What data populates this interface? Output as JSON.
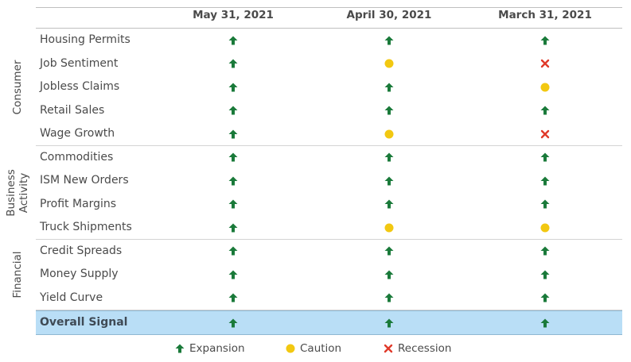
{
  "columns": [
    "May 31, 2021",
    "April 30, 2021",
    "March 31, 2021"
  ],
  "colors": {
    "expansion": "#1a7a3a",
    "caution": "#f2c811",
    "recession": "#e03a2a",
    "overall_bg": "#b9def6"
  },
  "groups": [
    {
      "name": "Consumer",
      "rows": [
        {
          "label": "Housing Permits",
          "signals": [
            "expansion",
            "expansion",
            "expansion"
          ]
        },
        {
          "label": "Job Sentiment",
          "signals": [
            "expansion",
            "caution",
            "recession"
          ]
        },
        {
          "label": "Jobless Claims",
          "signals": [
            "expansion",
            "expansion",
            "caution"
          ]
        },
        {
          "label": "Retail Sales",
          "signals": [
            "expansion",
            "expansion",
            "expansion"
          ]
        },
        {
          "label": "Wage Growth",
          "signals": [
            "expansion",
            "caution",
            "recession"
          ]
        }
      ]
    },
    {
      "name": "Business Activity",
      "name_lines": [
        "Business",
        "Activity"
      ],
      "rows": [
        {
          "label": "Commodities",
          "signals": [
            "expansion",
            "expansion",
            "expansion"
          ]
        },
        {
          "label": "ISM New Orders",
          "signals": [
            "expansion",
            "expansion",
            "expansion"
          ]
        },
        {
          "label": "Profit Margins",
          "signals": [
            "expansion",
            "expansion",
            "expansion"
          ]
        },
        {
          "label": "Truck Shipments",
          "signals": [
            "expansion",
            "caution",
            "caution"
          ]
        }
      ]
    },
    {
      "name": "Financial",
      "rows": [
        {
          "label": "Credit Spreads",
          "signals": [
            "expansion",
            "expansion",
            "expansion"
          ]
        },
        {
          "label": "Money Supply",
          "signals": [
            "expansion",
            "expansion",
            "expansion"
          ]
        },
        {
          "label": "Yield Curve",
          "signals": [
            "expansion",
            "expansion",
            "expansion"
          ]
        }
      ]
    }
  ],
  "overall": {
    "label": "Overall Signal",
    "signals": [
      "expansion",
      "expansion",
      "expansion"
    ]
  },
  "legend": [
    {
      "key": "expansion",
      "label": "Expansion",
      "icon": "up-arrow-icon"
    },
    {
      "key": "caution",
      "label": "Caution",
      "icon": "yellow-dot-icon"
    },
    {
      "key": "recession",
      "label": "Recession",
      "icon": "red-x-icon"
    }
  ]
}
